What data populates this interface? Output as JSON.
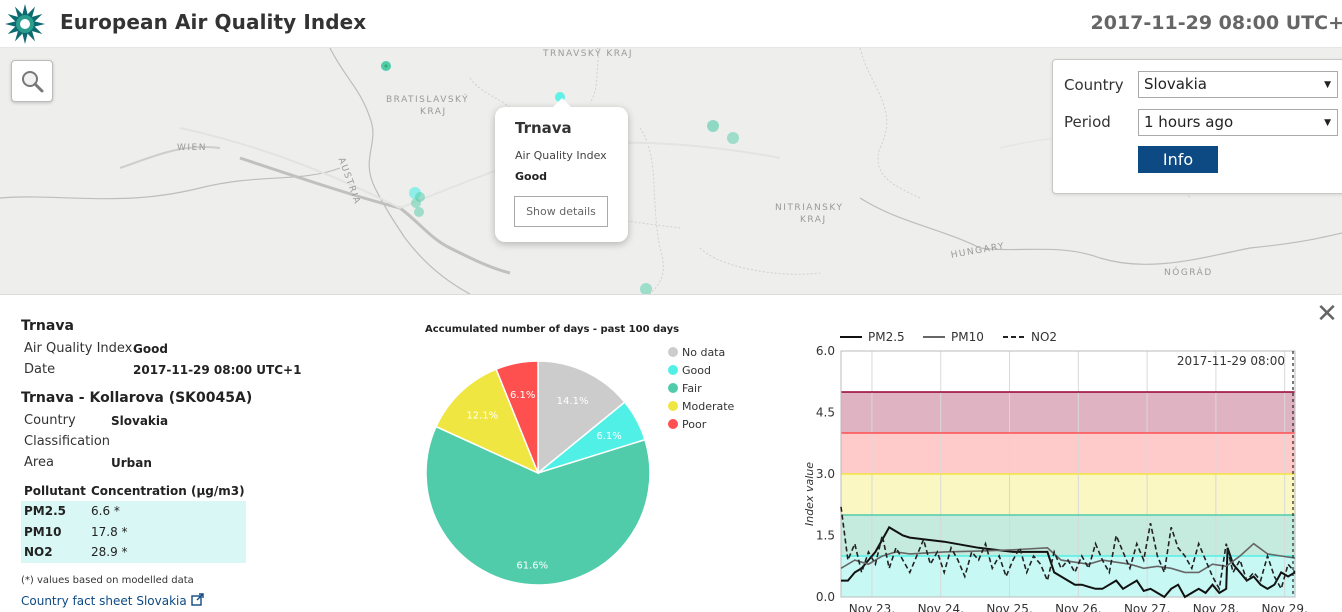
{
  "header": {
    "title": "European Air Quality Index",
    "datetime": "2017-11-29 08:00 UTC+"
  },
  "map": {
    "labels": [
      "TRNAVSKÝ KRAJ",
      "BRATISLAVSKÝ",
      "KRAJ",
      "WIEN",
      "AUSTRIA",
      "NITRIANSKY",
      "KRAJ",
      "HUNGARY",
      "NÓGRÁD"
    ]
  },
  "popup": {
    "title": "Trnava",
    "aqi_label": "Air Quality Index",
    "aqi_value": "Good",
    "button": "Show details"
  },
  "controls": {
    "country_label": "Country",
    "country_value": "Slovakia",
    "period_label": "Period",
    "period_value": "1 hours ago",
    "info_button": "Info"
  },
  "detail": {
    "title": "Trnava",
    "aqi_label": "Air Quality Index",
    "aqi_value": "Good",
    "date_label": "Date",
    "date_value": "2017-11-29 08:00 UTC+1",
    "station_title": "Trnava - Kollarova (SK0045A)",
    "country_label": "Country",
    "country_value": "Slovakia",
    "classification_label": "Classification",
    "area_label": "Area",
    "area_value": "Urban",
    "pollutant_header": "Pollutant",
    "concentration_header": "Concentration (µg/m3)",
    "pollutants": [
      {
        "name": "PM2.5",
        "value": "6.6 *"
      },
      {
        "name": "PM10",
        "value": "17.8 *"
      },
      {
        "name": "NO2",
        "value": "28.9 *"
      }
    ],
    "footnote": "(*) values based on modelled data",
    "fact_link": "Country fact sheet Slovakia"
  },
  "chart_data": [
    {
      "type": "pie",
      "title": "Accumulated number of days - past 100 days",
      "categories": [
        "No data",
        "Good",
        "Fair",
        "Moderate",
        "Poor"
      ],
      "values": [
        14.1,
        6.1,
        61.6,
        12.1,
        6.1
      ],
      "labels": [
        "14.1%",
        "6.1%",
        "61.6%",
        "12.1%",
        "6.1%"
      ],
      "colors": [
        "#cccccc",
        "#50f0e6",
        "#50ccaa",
        "#f0e641",
        "#ff5050"
      ],
      "legend": "right"
    },
    {
      "type": "line",
      "ylabel": "Index value",
      "ylim": [
        0,
        6
      ],
      "yticks": [
        "0.0",
        "1.5",
        "3.0",
        "4.5",
        "6.0"
      ],
      "x_categories": [
        "Nov 23,",
        "Nov 24,",
        "Nov 25,",
        "Nov 26,",
        "Nov 27,",
        "Nov 28,",
        "Nov 29,"
      ],
      "annotation": "2017-11-29 08:00",
      "bands": [
        {
          "from": 0,
          "to": 1,
          "color": "#c8f8f4"
        },
        {
          "from": 1,
          "to": 2,
          "color": "#c4ebde"
        },
        {
          "from": 2,
          "to": 3,
          "color": "#fbf7c3"
        },
        {
          "from": 3,
          "to": 4,
          "color": "#ffcaca"
        },
        {
          "from": 4,
          "to": 5,
          "color": "#dfb3c2"
        }
      ],
      "thresholds": [
        {
          "y": 1,
          "color": "#50f0e6"
        },
        {
          "y": 2,
          "color": "#50ccaa"
        },
        {
          "y": 3,
          "color": "#f0e641"
        },
        {
          "y": 4,
          "color": "#ff5050"
        },
        {
          "y": 5,
          "color": "#960032"
        }
      ],
      "series": [
        {
          "name": "PM2.5",
          "color": "#111111",
          "dash": "none",
          "x": [
            0.0,
            0.1,
            0.2,
            0.3,
            0.4,
            0.5,
            0.6,
            0.7,
            0.8,
            0.9,
            1.0,
            1.5,
            2.0,
            2.5,
            3.0,
            3.1,
            3.2,
            3.3,
            3.4,
            3.5,
            3.6,
            3.7,
            3.8,
            3.9,
            4.0,
            4.1,
            4.2,
            4.3,
            4.4,
            4.5,
            4.6,
            4.7,
            4.8,
            4.9,
            5.0,
            5.1,
            5.2,
            5.3,
            5.4,
            5.5,
            5.6,
            5.62,
            5.7,
            5.8,
            5.9,
            6.0,
            6.1,
            6.2,
            6.3,
            6.4,
            6.5,
            6.6
          ],
          "y": [
            0.4,
            0.4,
            0.6,
            0.7,
            0.9,
            1.1,
            1.4,
            1.7,
            1.6,
            1.5,
            1.45,
            1.35,
            1.2,
            1.1,
            1.1,
            0.6,
            0.5,
            0.4,
            0.3,
            0.3,
            0.25,
            0.2,
            0.2,
            0.3,
            0.4,
            0.2,
            0.3,
            0.4,
            0.15,
            0.2,
            0.1,
            0.0,
            0.2,
            0.3,
            0.0,
            0.1,
            0.2,
            0.1,
            0.3,
            0.1,
            0.2,
            1.2,
            0.8,
            0.6,
            0.4,
            0.5,
            0.3,
            0.2,
            0.3,
            0.6,
            0.5,
            0.6
          ]
        },
        {
          "name": "PM10",
          "color": "#666666",
          "dash": "none",
          "x": [
            0.0,
            0.2,
            0.4,
            0.6,
            0.8,
            1.0,
            1.5,
            2.0,
            2.5,
            3.0,
            3.2,
            3.4,
            3.6,
            3.8,
            4.0,
            4.2,
            4.4,
            4.6,
            4.8,
            5.0,
            5.2,
            5.4,
            5.6,
            5.8,
            6.0,
            6.2,
            6.4,
            6.6
          ],
          "y": [
            0.7,
            0.9,
            0.8,
            1.0,
            1.1,
            1.05,
            1.1,
            1.12,
            1.15,
            1.2,
            0.9,
            0.85,
            0.8,
            0.9,
            0.85,
            0.8,
            0.7,
            0.75,
            0.7,
            0.6,
            0.6,
            0.8,
            0.75,
            1.0,
            1.3,
            1.05,
            1.0,
            0.95
          ]
        },
        {
          "name": "NO2",
          "color": "#222222",
          "dash": "5,3",
          "x": [
            0.0,
            0.1,
            0.2,
            0.3,
            0.4,
            0.5,
            0.6,
            0.7,
            0.8,
            0.9,
            1.0,
            1.1,
            1.2,
            1.3,
            1.4,
            1.5,
            1.6,
            1.7,
            1.8,
            1.9,
            2.0,
            2.1,
            2.2,
            2.3,
            2.4,
            2.5,
            2.6,
            2.7,
            2.8,
            2.9,
            3.0,
            3.1,
            3.2,
            3.3,
            3.4,
            3.5,
            3.6,
            3.7,
            3.8,
            3.9,
            4.0,
            4.1,
            4.2,
            4.3,
            4.4,
            4.5,
            4.6,
            4.7,
            4.8,
            4.9,
            5.0,
            5.1,
            5.2,
            5.3,
            5.4,
            5.5,
            5.6,
            5.7,
            5.8,
            5.9,
            6.0,
            6.1,
            6.2,
            6.3,
            6.4,
            6.5,
            6.6
          ],
          "y": [
            2.2,
            0.9,
            1.3,
            0.6,
            1.1,
            0.8,
            1.5,
            0.7,
            1.2,
            0.9,
            0.6,
            1.0,
            1.4,
            0.8,
            1.1,
            0.6,
            1.2,
            0.9,
            0.5,
            1.1,
            0.9,
            1.3,
            0.7,
            1.0,
            0.5,
            0.9,
            1.2,
            0.6,
            1.0,
            0.8,
            0.4,
            1.1,
            0.7,
            0.9,
            0.6,
            1.0,
            0.7,
            1.3,
            0.9,
            0.6,
            1.5,
            1.1,
            0.7,
            1.3,
            0.9,
            1.8,
            1.0,
            0.6,
            1.7,
            1.2,
            1.0,
            0.7,
            1.3,
            0.9,
            0.5,
            0.2,
            1.3,
            0.6,
            0.9,
            0.4,
            0.6,
            0.4,
            1.0,
            0.5,
            0.2,
            0.8,
            0.6
          ]
        }
      ]
    }
  ]
}
